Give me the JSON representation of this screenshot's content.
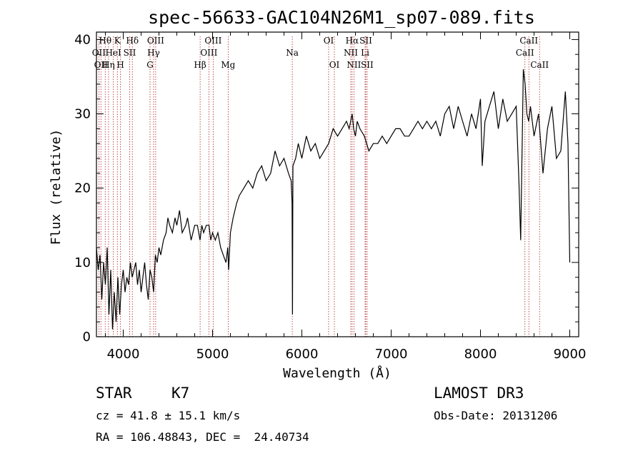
{
  "chart_data": {
    "type": "line",
    "title": "spec-56633-GAC104N26M1_sp07-089.fits",
    "xlabel": "Wavelength (Å)",
    "ylabel": "Flux (relative)",
    "xlim": [
      3700,
      9100
    ],
    "ylim": [
      0,
      41
    ],
    "xticks": [
      4000,
      5000,
      6000,
      7000,
      8000,
      9000
    ],
    "yticks": [
      0,
      10,
      20,
      30,
      40
    ],
    "series": [
      {
        "name": "flux",
        "x": [
          3700,
          3720,
          3740,
          3760,
          3780,
          3800,
          3820,
          3840,
          3860,
          3880,
          3900,
          3920,
          3940,
          3960,
          3980,
          4000,
          4020,
          4040,
          4060,
          4080,
          4100,
          4120,
          4140,
          4160,
          4180,
          4200,
          4220,
          4240,
          4260,
          4280,
          4300,
          4320,
          4340,
          4360,
          4380,
          4400,
          4420,
          4450,
          4480,
          4500,
          4520,
          4550,
          4580,
          4600,
          4630,
          4660,
          4700,
          4720,
          4760,
          4800,
          4830,
          4860,
          4880,
          4900,
          4930,
          4960,
          4980,
          5000,
          5030,
          5060,
          5090,
          5120,
          5150,
          5170,
          5180,
          5200,
          5230,
          5270,
          5300,
          5350,
          5400,
          5450,
          5500,
          5550,
          5600,
          5650,
          5700,
          5750,
          5800,
          5850,
          5880,
          5890,
          5895,
          5900,
          5930,
          5960,
          6000,
          6050,
          6100,
          6150,
          6200,
          6250,
          6300,
          6350,
          6400,
          6450,
          6500,
          6530,
          6563,
          6580,
          6600,
          6620,
          6650,
          6700,
          6750,
          6800,
          6850,
          6900,
          6950,
          7000,
          7050,
          7100,
          7150,
          7200,
          7250,
          7300,
          7350,
          7400,
          7450,
          7500,
          7550,
          7600,
          7650,
          7700,
          7750,
          7800,
          7850,
          7900,
          7950,
          8000,
          8020,
          8050,
          8100,
          8150,
          8200,
          8250,
          8300,
          8350,
          8400,
          8430,
          8450,
          8480,
          8500,
          8520,
          8540,
          8560,
          8600,
          8650,
          8700,
          8750,
          8800,
          8850,
          8900,
          8950,
          8980,
          9000
        ],
        "y": [
          12,
          9,
          11,
          5,
          10,
          7,
          12,
          3,
          9,
          1,
          6,
          2,
          8,
          3,
          7,
          9,
          6,
          8,
          7,
          10,
          8,
          9,
          10,
          7,
          9,
          6,
          8,
          10,
          7,
          5,
          9,
          8,
          6,
          11,
          10,
          12,
          11,
          13,
          14,
          16,
          15,
          14,
          16,
          15,
          17,
          14,
          15,
          16,
          13,
          15,
          15,
          13,
          15,
          14,
          15,
          15,
          13,
          14,
          13,
          14,
          12,
          11,
          10,
          12,
          9,
          14,
          16,
          18,
          19,
          20,
          21,
          20,
          22,
          23,
          21,
          22,
          25,
          23,
          24,
          22,
          21,
          18,
          3,
          23,
          24,
          26,
          24,
          27,
          25,
          26,
          24,
          25,
          26,
          28,
          27,
          28,
          29,
          28,
          30,
          28,
          27,
          29,
          28,
          27,
          25,
          26,
          26,
          27,
          26,
          27,
          28,
          28,
          27,
          27,
          28,
          29,
          28,
          29,
          28,
          29,
          27,
          30,
          31,
          28,
          31,
          29,
          27,
          30,
          28,
          32,
          23,
          29,
          31,
          33,
          28,
          32,
          29,
          30,
          31,
          21,
          13,
          36,
          34,
          30,
          29,
          31,
          27,
          30,
          22,
          28,
          31,
          24,
          25,
          33,
          26,
          10
        ]
      }
    ],
    "lines": [
      {
        "wavelength": 3727,
        "label": "OII",
        "row": 2
      },
      {
        "wavelength": 3750,
        "label": "OII",
        "row": 3
      },
      {
        "wavelength": 3798,
        "label": "Hθ",
        "row": 1
      },
      {
        "wavelength": 3835,
        "label": "Hη",
        "row": 3
      },
      {
        "wavelength": 3889,
        "label": "HeI",
        "row": 2
      },
      {
        "wavelength": 3934,
        "label": "K",
        "row": 1
      },
      {
        "wavelength": 3969,
        "label": "H",
        "row": 3
      },
      {
        "wavelength": 4072,
        "label": "SII",
        "row": 2
      },
      {
        "wavelength": 4102,
        "label": "Hδ",
        "row": 1
      },
      {
        "wavelength": 4300,
        "label": "G",
        "row": 3
      },
      {
        "wavelength": 4340,
        "label": "Hγ",
        "row": 2
      },
      {
        "wavelength": 4363,
        "label": "OIII",
        "row": 1
      },
      {
        "wavelength": 4861,
        "label": "Hβ",
        "row": 3
      },
      {
        "wavelength": 4959,
        "label": "OIII",
        "row": 2
      },
      {
        "wavelength": 5007,
        "label": "OIII",
        "row": 1
      },
      {
        "wavelength": 5175,
        "label": "Mg",
        "row": 3
      },
      {
        "wavelength": 5893,
        "label": "Na",
        "row": 2
      },
      {
        "wavelength": 6300,
        "label": "OI",
        "row": 1
      },
      {
        "wavelength": 6364,
        "label": "OI",
        "row": 3
      },
      {
        "wavelength": 6548,
        "label": "NII",
        "row": 2
      },
      {
        "wavelength": 6563,
        "label": "Hα",
        "row": 1
      },
      {
        "wavelength": 6583,
        "label": "NII",
        "row": 3
      },
      {
        "wavelength": 6708,
        "label": "Li",
        "row": 2
      },
      {
        "wavelength": 6716,
        "label": "SII",
        "row": 1
      },
      {
        "wavelength": 6731,
        "label": "SII",
        "row": 3
      },
      {
        "wavelength": 8498,
        "label": "CaII",
        "row": 2
      },
      {
        "wavelength": 8542,
        "label": "CaII",
        "row": 1
      },
      {
        "wavelength": 8662,
        "label": "CaII",
        "row": 3
      }
    ]
  },
  "info": {
    "object_class": "STAR",
    "subclass": "K7",
    "redshift": "cz = 41.8 ± 15.1 km/s",
    "coords": "RA = 106.48843, DEC =  24.40734",
    "survey": "LAMOST DR3",
    "obs_date": "Obs-Date: 20131206"
  },
  "colors": {
    "axes": "#000000",
    "spectrum": "#000000",
    "line_marker": "#b22222"
  }
}
